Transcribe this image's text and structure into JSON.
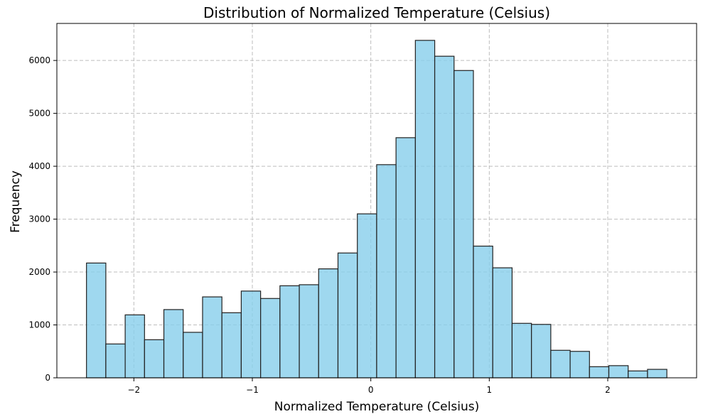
{
  "chart_data": {
    "type": "bar",
    "title": "Distribution of Normalized Temperature (Celsius)",
    "xlabel": "Normalized Temperature (Celsius)",
    "ylabel": "Frequency",
    "xlim": [
      -2.65,
      2.75
    ],
    "ylim": [
      0,
      6700
    ],
    "xticks": [
      -2,
      -1,
      0,
      1,
      2
    ],
    "xtick_labels": [
      "−2",
      "−1",
      "0",
      "1",
      "2"
    ],
    "yticks": [
      0,
      1000,
      2000,
      3000,
      4000,
      5000,
      6000
    ],
    "ytick_labels": [
      "0",
      "1000",
      "2000",
      "3000",
      "4000",
      "5000",
      "6000"
    ],
    "grid": true,
    "bar_color": "#87CEEB",
    "edge_color": "#222222",
    "bins": {
      "start": -2.4,
      "width": 0.1633,
      "counts": [
        2170,
        640,
        1190,
        720,
        1290,
        860,
        1530,
        1230,
        1640,
        1500,
        1740,
        1760,
        2060,
        2360,
        3100,
        4030,
        4540,
        6380,
        6080,
        5810,
        2490,
        2080,
        1030,
        1010,
        520,
        500,
        210,
        230,
        130,
        160
      ]
    }
  }
}
